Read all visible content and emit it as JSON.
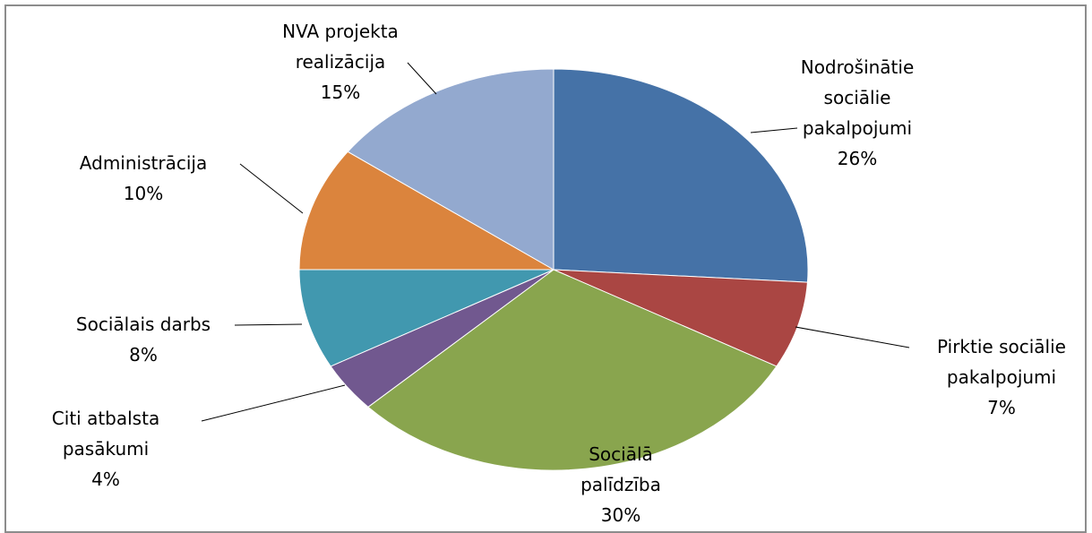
{
  "chart_data": {
    "type": "pie",
    "categories": [
      "Nodrošinātie sociālie pakalpojumi",
      "Pirktie sociālie pakalpojumi",
      "Sociālā palīdzība",
      "Citi atbalsta pasākumi",
      "Sociālais darbs",
      "Administrācija",
      "NVA projekta realizācija"
    ],
    "values": [
      26,
      7,
      30,
      4,
      8,
      10,
      15
    ],
    "value_labels": [
      "26%",
      "7%",
      "30%",
      "4%",
      "8%",
      "10%",
      "15%"
    ],
    "colors": [
      "#4572a7",
      "#aa4643",
      "#89a54e",
      "#71588f",
      "#4198af",
      "#db843d",
      "#93a9cf"
    ]
  }
}
